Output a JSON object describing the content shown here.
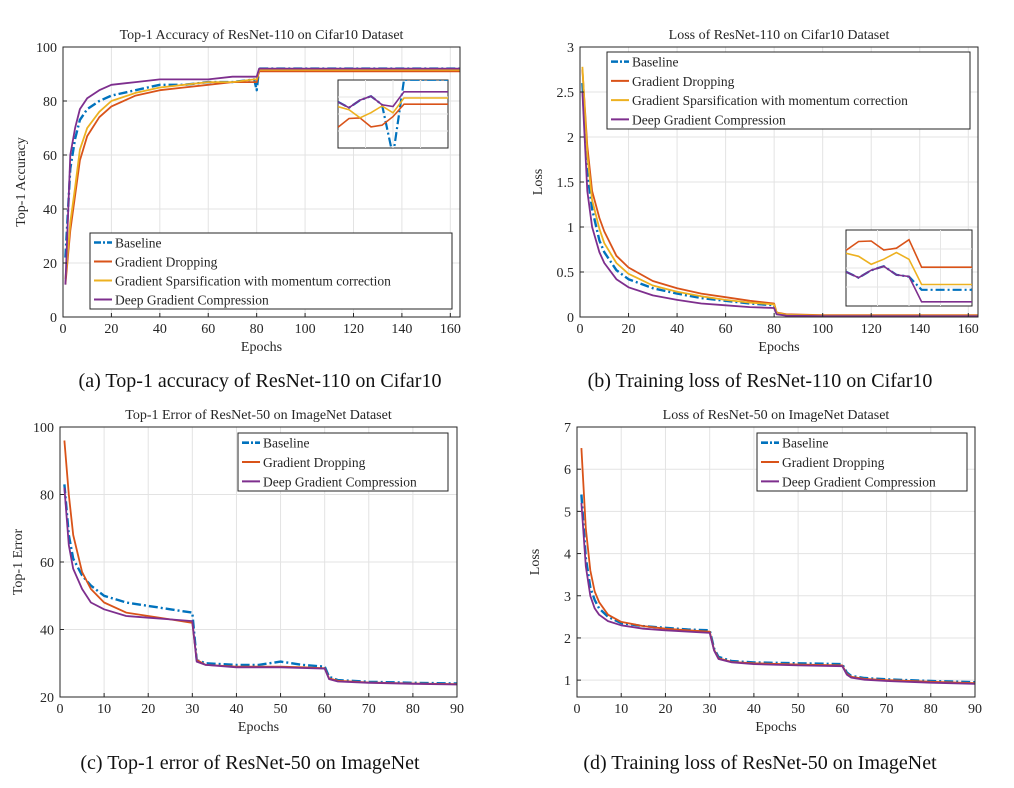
{
  "colors": {
    "baseline": "#0072bd",
    "dropping": "#d95319",
    "sparsification": "#edb120",
    "dgc": "#7e2f8e"
  },
  "captions": {
    "a": "(a) Top-1 accuracy of ResNet-110 on Cifar10",
    "b": "(b) Training loss of ResNet-110 on Cifar10",
    "c": "(c) Top-1 error of ResNet-50 on ImageNet",
    "d": "(d) Training loss of ResNet-50 on ImageNet"
  },
  "chart_data": [
    {
      "id": "a",
      "type": "line",
      "title": "Top-1 Accuracy of ResNet-110 on Cifar10 Dataset",
      "xlabel": "Epochs",
      "ylabel": "Top-1 Accuracy",
      "xlim": [
        0,
        164
      ],
      "ylim": [
        0,
        100
      ],
      "xticks": [
        0,
        20,
        40,
        60,
        80,
        100,
        120,
        140,
        160
      ],
      "yticks": [
        0,
        20,
        40,
        60,
        80,
        100
      ],
      "legend_position": "bottom-right",
      "inset": "top-right zoom of epochs ~110-160",
      "series": [
        {
          "name": "Baseline",
          "key": "baseline",
          "style": "dashdot",
          "x": [
            1,
            3,
            5,
            7,
            10,
            15,
            20,
            30,
            40,
            50,
            60,
            70,
            79,
            80,
            81,
            90,
            120,
            164
          ],
          "y": [
            22,
            55,
            66,
            73,
            77,
            80,
            82,
            84,
            86,
            86,
            87,
            87,
            88,
            84,
            92,
            92,
            92,
            92
          ]
        },
        {
          "name": "Gradient Dropping",
          "key": "dropping",
          "style": "solid",
          "x": [
            1,
            3,
            5,
            7,
            10,
            15,
            20,
            30,
            40,
            50,
            60,
            70,
            79,
            80,
            81,
            90,
            120,
            164
          ],
          "y": [
            12,
            32,
            45,
            58,
            67,
            74,
            78,
            82,
            84,
            85,
            86,
            87,
            87,
            87,
            91,
            91,
            91,
            91
          ]
        },
        {
          "name": "Gradient Sparsification with momentum correction",
          "key": "sparsification",
          "style": "solid",
          "x": [
            1,
            3,
            5,
            7,
            10,
            15,
            20,
            30,
            40,
            50,
            60,
            70,
            79,
            80,
            81,
            90,
            120,
            164
          ],
          "y": [
            14,
            35,
            48,
            62,
            70,
            76,
            80,
            83,
            85,
            86,
            87,
            87,
            88,
            88,
            91.5,
            91.5,
            91.5,
            91.5
          ]
        },
        {
          "name": "Deep Gradient Compression",
          "key": "dgc",
          "style": "solid",
          "x": [
            1,
            3,
            5,
            7,
            10,
            15,
            20,
            30,
            40,
            50,
            60,
            70,
            79,
            80,
            81,
            90,
            120,
            164
          ],
          "y": [
            12,
            60,
            70,
            77,
            81,
            84,
            86,
            87,
            88,
            88,
            88,
            89,
            89,
            89,
            92,
            92,
            92,
            92
          ]
        }
      ]
    },
    {
      "id": "b",
      "type": "line",
      "title": "Loss of ResNet-110 on Cifar10 Dataset",
      "xlabel": "Epochs",
      "ylabel": "Loss",
      "xlim": [
        0,
        164
      ],
      "ylim": [
        0,
        3
      ],
      "xticks": [
        0,
        20,
        40,
        60,
        80,
        100,
        120,
        140,
        160
      ],
      "yticks": [
        0,
        0.5,
        1,
        1.5,
        2,
        2.5,
        3
      ],
      "legend_position": "top-right",
      "inset": "lower-right zoom of epochs ~110-160",
      "series": [
        {
          "name": "Baseline",
          "key": "baseline",
          "style": "dashdot",
          "x": [
            1,
            3,
            5,
            8,
            10,
            15,
            20,
            30,
            40,
            50,
            60,
            70,
            80,
            81,
            85,
            100,
            164
          ],
          "y": [
            2.6,
            1.6,
            1.2,
            0.85,
            0.72,
            0.52,
            0.42,
            0.32,
            0.26,
            0.21,
            0.18,
            0.15,
            0.13,
            0.04,
            0.02,
            0.01,
            0.01
          ]
        },
        {
          "name": "Gradient Dropping",
          "key": "dropping",
          "style": "solid",
          "x": [
            1,
            3,
            5,
            8,
            10,
            15,
            20,
            30,
            40,
            50,
            60,
            70,
            80,
            81,
            85,
            100,
            164
          ],
          "y": [
            2.75,
            1.9,
            1.4,
            1.1,
            0.95,
            0.68,
            0.55,
            0.4,
            0.32,
            0.26,
            0.22,
            0.18,
            0.15,
            0.05,
            0.03,
            0.02,
            0.02
          ]
        },
        {
          "name": "Gradient Sparsification with momentum correction",
          "key": "sparsification",
          "style": "solid",
          "x": [
            1,
            3,
            5,
            8,
            10,
            15,
            20,
            30,
            40,
            50,
            60,
            70,
            80,
            81,
            85,
            100,
            164
          ],
          "y": [
            2.78,
            1.8,
            1.3,
            0.98,
            0.82,
            0.6,
            0.48,
            0.35,
            0.28,
            0.23,
            0.19,
            0.16,
            0.14,
            0.045,
            0.025,
            0.015,
            0.015
          ]
        },
        {
          "name": "Deep Gradient Compression",
          "key": "dgc",
          "style": "solid",
          "x": [
            1,
            3,
            5,
            8,
            10,
            15,
            20,
            30,
            40,
            50,
            60,
            70,
            80,
            81,
            85,
            100,
            164
          ],
          "y": [
            2.5,
            1.4,
            1.0,
            0.72,
            0.6,
            0.42,
            0.33,
            0.24,
            0.19,
            0.15,
            0.13,
            0.11,
            0.1,
            0.03,
            0.015,
            0.01,
            0.01
          ]
        }
      ]
    },
    {
      "id": "c",
      "type": "line",
      "title": "Top-1 Error of ResNet-50 on ImageNet Dataset",
      "xlabel": "Epochs",
      "ylabel": "Top-1 Error",
      "xlim": [
        0,
        90
      ],
      "ylim": [
        20,
        100
      ],
      "xticks": [
        0,
        10,
        20,
        30,
        40,
        50,
        60,
        70,
        80,
        90
      ],
      "yticks": [
        20,
        40,
        60,
        80,
        100
      ],
      "legend_position": "top-right",
      "series": [
        {
          "name": "Baseline",
          "key": "baseline",
          "style": "dashdot",
          "x": [
            1,
            2,
            3,
            5,
            7,
            10,
            15,
            20,
            25,
            30,
            31,
            33,
            40,
            45,
            50,
            55,
            60,
            61,
            63,
            70,
            80,
            90
          ],
          "y": [
            83,
            68,
            61,
            56,
            53,
            50,
            48,
            47,
            46,
            45,
            31,
            30,
            29.5,
            29.5,
            30.5,
            29.5,
            29,
            26,
            25,
            24.5,
            24.2,
            24
          ]
        },
        {
          "name": "Gradient Dropping",
          "key": "dropping",
          "style": "solid",
          "x": [
            1,
            2,
            3,
            5,
            7,
            10,
            15,
            20,
            25,
            30,
            31,
            33,
            40,
            45,
            50,
            55,
            60,
            61,
            63,
            70,
            80,
            90
          ],
          "y": [
            96,
            80,
            68,
            57,
            52,
            48,
            45,
            44,
            43,
            42,
            31,
            29.5,
            29,
            29,
            29,
            28.8,
            28.5,
            25.5,
            24.8,
            24.3,
            24,
            23.8
          ]
        },
        {
          "name": "Deep Gradient Compression",
          "key": "dgc",
          "style": "solid",
          "x": [
            1,
            2,
            3,
            5,
            7,
            10,
            15,
            20,
            25,
            30,
            31,
            33,
            40,
            45,
            50,
            55,
            60,
            61,
            63,
            70,
            80,
            90
          ],
          "y": [
            82,
            65,
            58,
            52,
            48,
            46,
            44,
            43.5,
            43,
            42.5,
            30.5,
            29.5,
            28.8,
            28.8,
            28.8,
            28.6,
            28.4,
            25.3,
            24.6,
            24.2,
            23.9,
            23.7
          ]
        }
      ]
    },
    {
      "id": "d",
      "type": "line",
      "title": "Loss of ResNet-50 on ImageNet Dataset",
      "xlabel": "Epochs",
      "ylabel": "Loss",
      "xlim": [
        0,
        90
      ],
      "ylim": [
        0.6,
        7
      ],
      "xticks": [
        0,
        10,
        20,
        30,
        40,
        50,
        60,
        70,
        80,
        90
      ],
      "yticks": [
        1,
        2,
        3,
        4,
        5,
        6,
        7
      ],
      "legend_position": "top-right",
      "series": [
        {
          "name": "Baseline",
          "key": "baseline",
          "style": "dashdot",
          "x": [
            1,
            2,
            3,
            4,
            5,
            7,
            10,
            15,
            20,
            25,
            30,
            31,
            32,
            35,
            40,
            50,
            60,
            61,
            62,
            65,
            70,
            80,
            90
          ],
          "y": [
            5.4,
            3.9,
            3.2,
            2.9,
            2.7,
            2.5,
            2.35,
            2.28,
            2.24,
            2.2,
            2.18,
            1.75,
            1.55,
            1.45,
            1.42,
            1.4,
            1.38,
            1.18,
            1.1,
            1.05,
            1.02,
            0.98,
            0.95
          ]
        },
        {
          "name": "Gradient Dropping",
          "key": "dropping",
          "style": "solid",
          "x": [
            1,
            2,
            3,
            4,
            5,
            7,
            10,
            15,
            20,
            25,
            30,
            31,
            32,
            35,
            40,
            50,
            60,
            61,
            62,
            65,
            70,
            80,
            90
          ],
          "y": [
            6.5,
            4.6,
            3.6,
            3.1,
            2.85,
            2.55,
            2.38,
            2.28,
            2.22,
            2.18,
            2.15,
            1.72,
            1.52,
            1.43,
            1.4,
            1.37,
            1.35,
            1.15,
            1.08,
            1.03,
            1.0,
            0.96,
            0.93
          ]
        },
        {
          "name": "Deep Gradient Compression",
          "key": "dgc",
          "style": "solid",
          "x": [
            1,
            2,
            3,
            4,
            5,
            7,
            10,
            15,
            20,
            25,
            30,
            31,
            32,
            35,
            40,
            50,
            60,
            61,
            62,
            65,
            70,
            80,
            90
          ],
          "y": [
            5.2,
            3.7,
            3.0,
            2.7,
            2.55,
            2.4,
            2.3,
            2.22,
            2.18,
            2.15,
            2.12,
            1.7,
            1.5,
            1.42,
            1.38,
            1.35,
            1.33,
            1.13,
            1.06,
            1.01,
            0.98,
            0.94,
            0.91
          ]
        }
      ]
    }
  ]
}
